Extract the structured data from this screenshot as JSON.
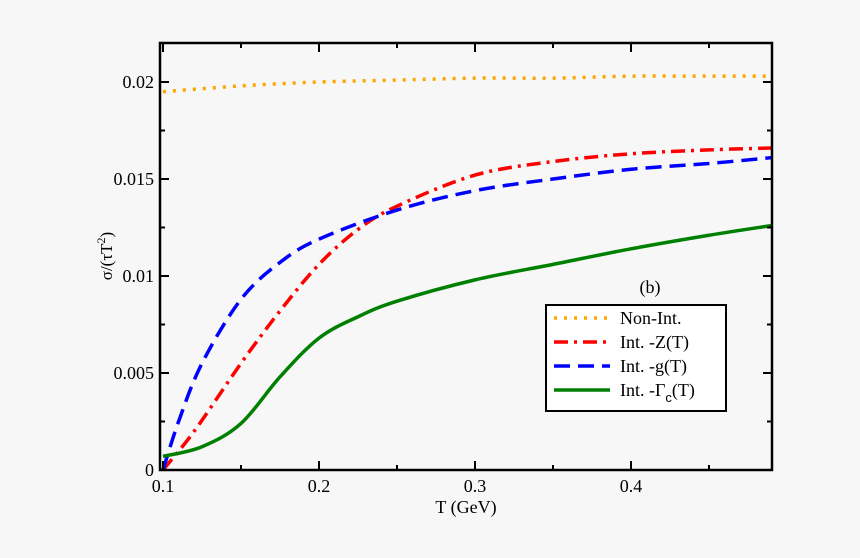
{
  "chart_data": {
    "type": "line",
    "title": "",
    "panel_label": "(b)",
    "xlabel": "T (GeV)",
    "ylabel": "σ/(τT²)",
    "xlim": [
      0.1,
      0.49
    ],
    "ylim": [
      0,
      0.022
    ],
    "xticks": [
      0.1,
      0.2,
      0.3,
      0.4
    ],
    "xtick_labels": [
      "0.1",
      "0.2",
      "0.3",
      "0.4"
    ],
    "yticks": [
      0,
      0.005,
      0.01,
      0.015,
      0.02
    ],
    "ytick_labels": [
      "0",
      "0.005",
      "0.01",
      "0.015",
      "0.02"
    ],
    "grid": false,
    "legend_position": "right",
    "series": [
      {
        "name": "Non-Int.",
        "color": "#ffa500",
        "style": "dotted",
        "x": [
          0.1,
          0.15,
          0.2,
          0.25,
          0.3,
          0.35,
          0.4,
          0.45,
          0.49
        ],
        "y": [
          0.0195,
          0.0198,
          0.02,
          0.0201,
          0.0202,
          0.0202,
          0.0203,
          0.0203,
          0.0203
        ]
      },
      {
        "name": "Int. -Z(T)",
        "color": "#ff0000",
        "style": "dashdot",
        "x": [
          0.1,
          0.12,
          0.15,
          0.175,
          0.2,
          0.225,
          0.25,
          0.3,
          0.35,
          0.4,
          0.45,
          0.49
        ],
        "y": [
          0.0,
          0.002,
          0.0055,
          0.0082,
          0.0106,
          0.0124,
          0.0136,
          0.0152,
          0.0159,
          0.0163,
          0.0165,
          0.0166
        ]
      },
      {
        "name": "Int. -g(T)",
        "color": "#0000ff",
        "style": "dashed",
        "x": [
          0.1,
          0.11,
          0.125,
          0.15,
          0.175,
          0.2,
          0.25,
          0.3,
          0.35,
          0.4,
          0.45,
          0.49
        ],
        "y": [
          0.0,
          0.0025,
          0.0055,
          0.0088,
          0.0107,
          0.0119,
          0.0134,
          0.0144,
          0.015,
          0.0155,
          0.0158,
          0.0161
        ]
      },
      {
        "name": "Int. -Γc(T)",
        "color": "#008000",
        "style": "solid",
        "x": [
          0.1,
          0.125,
          0.15,
          0.175,
          0.2,
          0.225,
          0.25,
          0.3,
          0.35,
          0.4,
          0.45,
          0.49
        ],
        "y": [
          0.0007,
          0.0012,
          0.0024,
          0.0048,
          0.0068,
          0.0079,
          0.0087,
          0.0098,
          0.0106,
          0.0114,
          0.0121,
          0.0126
        ]
      }
    ]
  }
}
